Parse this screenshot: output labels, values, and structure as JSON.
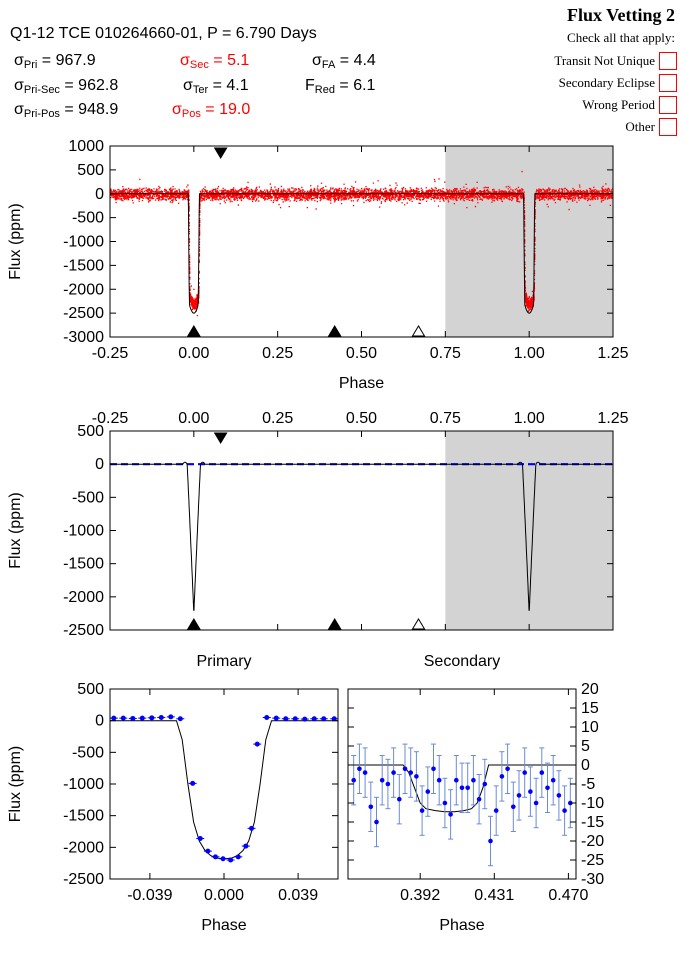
{
  "header": {
    "title": "Q1-12 TCE 010264660-01, P = 6.790 Days",
    "stats": [
      {
        "sym": "σ",
        "sub": "Pri",
        "val": " = 967.9",
        "highlight": false
      },
      {
        "sym": "σ",
        "sub": "Pri-Sec",
        "val": " = 962.8",
        "highlight": false
      },
      {
        "sym": "σ",
        "sub": "Pri-Pos",
        "val": " = 948.9",
        "highlight": false
      },
      {
        "sym": "σ",
        "sub": "Sec",
        "val": " = 5.1",
        "highlight": true
      },
      {
        "sym": "σ",
        "sub": "Ter",
        "val": " = 4.1",
        "highlight": false
      },
      {
        "sym": "σ",
        "sub": "Pos",
        "val": " = 19.0",
        "highlight": true
      },
      {
        "sym": "σ",
        "sub": "FA",
        "val": " = 4.4",
        "highlight": false
      },
      {
        "sym": "F",
        "sub": "Red",
        "val": " = 6.1",
        "highlight": false
      }
    ]
  },
  "vetting": {
    "title": "Flux Vetting 2",
    "subtitle": "Check all that apply:",
    "options": [
      "Transit Not Unique",
      "Secondary Eclipse",
      "Wrong Period",
      "Other"
    ]
  },
  "colors": {
    "data_red": "#ff0000",
    "model_black": "#000000",
    "binned_blue": "#0000ff",
    "shade": "#d3d3d3"
  },
  "chart_data": [
    {
      "type": "scatter",
      "title": "",
      "xlabel": "Phase",
      "ylabel": "Flux (ppm)",
      "xlim": [
        -0.25,
        1.25
      ],
      "ylim": [
        -3000,
        1000
      ],
      "xticks": [
        "-0.25",
        "0.00",
        "0.25",
        "0.50",
        "0.75",
        "1.00",
        "1.25"
      ],
      "yticks": [
        "1000",
        "500",
        "0",
        "-500",
        "-1000",
        "-1500",
        "-2000",
        "-2500",
        "-3000"
      ],
      "shaded_range": [
        0.75,
        1.25
      ],
      "transit_depth_ppm": -2300,
      "scatter_noise_ppm": 150,
      "markers_top": [
        {
          "phase": 0.08,
          "filled": true
        }
      ],
      "markers_bottom": [
        {
          "phase": 0.0,
          "filled": true
        },
        {
          "phase": 0.42,
          "filled": true
        },
        {
          "phase": 0.67,
          "filled": false
        }
      ]
    },
    {
      "type": "line",
      "xlabel": "",
      "ylabel": "Flux (ppm)",
      "xlim": [
        -0.25,
        1.25
      ],
      "ylim": [
        -2500,
        500
      ],
      "xticks": [
        "-0.25",
        "0.00",
        "0.25",
        "0.50",
        "0.75",
        "1.00",
        "1.25"
      ],
      "yticks": [
        "500",
        "0",
        "-500",
        "-1000",
        "-1500",
        "-2000",
        "-2500"
      ],
      "shaded_range": [
        0.75,
        1.25
      ],
      "model_depth_ppm": -2250,
      "baseline_ppm": 0,
      "markers_top": [
        {
          "phase": 0.08,
          "filled": true
        }
      ],
      "markers_bottom": [
        {
          "phase": 0.0,
          "filled": true
        },
        {
          "phase": 0.42,
          "filled": true
        },
        {
          "phase": 0.67,
          "filled": false
        }
      ]
    },
    {
      "type": "line",
      "title": "Primary",
      "xlabel": "Phase",
      "ylabel": "Flux (ppm)",
      "xlim": [
        -0.06,
        0.06
      ],
      "ylim": [
        -2500,
        500
      ],
      "xticks": [
        "-0.039",
        "0.000",
        "0.039"
      ],
      "yticks": [
        "500",
        "0",
        "-500",
        "-1000",
        "-1500",
        "-2000",
        "-2500"
      ],
      "binned_x": [
        -0.058,
        -0.053,
        -0.048,
        -0.043,
        -0.038,
        -0.033,
        -0.028,
        -0.023,
        -0.0165,
        -0.0125,
        -0.0085,
        -0.0045,
        -0.0005,
        0.0035,
        0.0075,
        0.0115,
        0.0145,
        0.0175,
        0.0225,
        0.0275,
        0.0325,
        0.0375,
        0.0425,
        0.0475,
        0.0525,
        0.058
      ],
      "binned_y": [
        40,
        40,
        35,
        40,
        45,
        50,
        60,
        30,
        -990,
        -1860,
        -2060,
        -2150,
        -2180,
        -2200,
        -2150,
        -1980,
        -1700,
        -370,
        50,
        40,
        30,
        30,
        25,
        30,
        30,
        30
      ],
      "model_x": [
        -0.06,
        -0.025,
        -0.022,
        -0.019,
        -0.016,
        -0.013,
        -0.01,
        -0.007,
        -0.004,
        0.0,
        0.004,
        0.007,
        0.01,
        0.013,
        0.016,
        0.019,
        0.022,
        0.025,
        0.06
      ],
      "model_y": [
        0,
        0,
        -300,
        -1000,
        -1600,
        -1900,
        -2050,
        -2130,
        -2170,
        -2180,
        -2170,
        -2130,
        -2050,
        -1900,
        -1600,
        -1000,
        -300,
        0,
        0
      ]
    },
    {
      "type": "line",
      "title": "Secondary",
      "xlabel": "Phase",
      "ylabel": "",
      "xlim": [
        0.354,
        0.474
      ],
      "ylim": [
        -30,
        20
      ],
      "xticks": [
        "0.392",
        "0.431",
        "0.470"
      ],
      "yticks": [
        "20",
        "15",
        "10",
        "5",
        "0",
        "-5",
        "-10",
        "-15",
        "-20",
        "-25",
        "-30"
      ],
      "binned_x": [
        0.357,
        0.36,
        0.363,
        0.366,
        0.369,
        0.372,
        0.375,
        0.378,
        0.381,
        0.384,
        0.387,
        0.39,
        0.393,
        0.396,
        0.399,
        0.402,
        0.405,
        0.408,
        0.411,
        0.414,
        0.417,
        0.42,
        0.423,
        0.426,
        0.429,
        0.432,
        0.435,
        0.438,
        0.441,
        0.444,
        0.447,
        0.45,
        0.453,
        0.456,
        0.459,
        0.462,
        0.465,
        0.468,
        0.471
      ],
      "binned_y": [
        -4,
        -1,
        -2,
        -11,
        -15,
        -4,
        -5,
        -2,
        -9,
        -1,
        -2,
        -3,
        -12,
        -7,
        -1,
        -4,
        -10,
        -13,
        -4,
        -6,
        -6,
        -4,
        -9,
        -5,
        -20,
        -12,
        -3,
        -1,
        -11,
        -8,
        -2,
        -7,
        -10,
        -2,
        -6,
        -4,
        -8,
        -12,
        -10
      ],
      "model_x": [
        0.354,
        0.383,
        0.386,
        0.389,
        0.392,
        0.395,
        0.4,
        0.405,
        0.41,
        0.415,
        0.419,
        0.422,
        0.425,
        0.428,
        0.474
      ],
      "model_y": [
        0,
        0,
        -2,
        -6,
        -10,
        -11.5,
        -12,
        -12.3,
        -12.3,
        -12,
        -11.5,
        -10,
        -6,
        0,
        0
      ]
    }
  ]
}
